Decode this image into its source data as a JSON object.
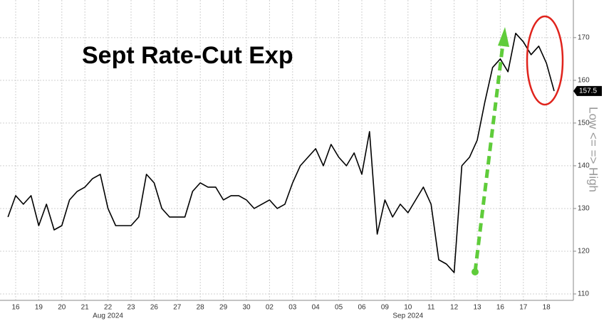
{
  "chart_data": {
    "type": "line",
    "title": "Sept Rate-Cut Exp",
    "y_axis_label": "Low <= => High",
    "categories": [
      null,
      "16",
      null,
      null,
      "19",
      null,
      null,
      "20",
      null,
      null,
      "21",
      null,
      null,
      "22",
      null,
      null,
      "23",
      null,
      null,
      "26",
      null,
      null,
      "27",
      null,
      null,
      "28",
      null,
      null,
      "29",
      null,
      null,
      "30",
      null,
      null,
      "02",
      null,
      null,
      "03",
      null,
      null,
      "04",
      null,
      null,
      "05",
      null,
      null,
      "06",
      null,
      null,
      "09",
      null,
      null,
      "10",
      null,
      null,
      "11",
      null,
      null,
      "12",
      null,
      null,
      "13",
      null,
      null,
      "16",
      null,
      null,
      "17",
      null,
      null,
      "18",
      null
    ],
    "x_group_labels": [
      "Aug 2024",
      "Sep 2024"
    ],
    "series": [
      {
        "name": "Sept Rate-Cut Exp",
        "color": "#000000",
        "values": [
          128,
          133,
          131,
          133,
          126,
          131,
          125,
          126,
          132,
          134,
          135,
          137,
          138,
          130,
          126,
          126,
          126,
          128,
          138,
          136,
          130,
          128,
          128,
          128,
          134,
          136,
          135,
          135,
          132,
          133,
          133,
          132,
          130,
          131,
          132,
          130,
          131,
          136,
          140,
          142,
          144,
          140,
          145,
          142,
          140,
          143,
          138,
          148,
          124,
          132,
          128,
          131,
          129,
          132,
          135,
          131,
          118,
          117,
          115,
          140,
          142,
          146,
          155,
          163,
          165,
          162,
          171,
          169,
          166,
          168,
          164,
          157.5
        ]
      }
    ],
    "current_value": 157.5,
    "ylim": [
      108.5,
      178.8
    ],
    "yticks": [
      110,
      120,
      130,
      140,
      150,
      160,
      170
    ],
    "grid": true
  }
}
